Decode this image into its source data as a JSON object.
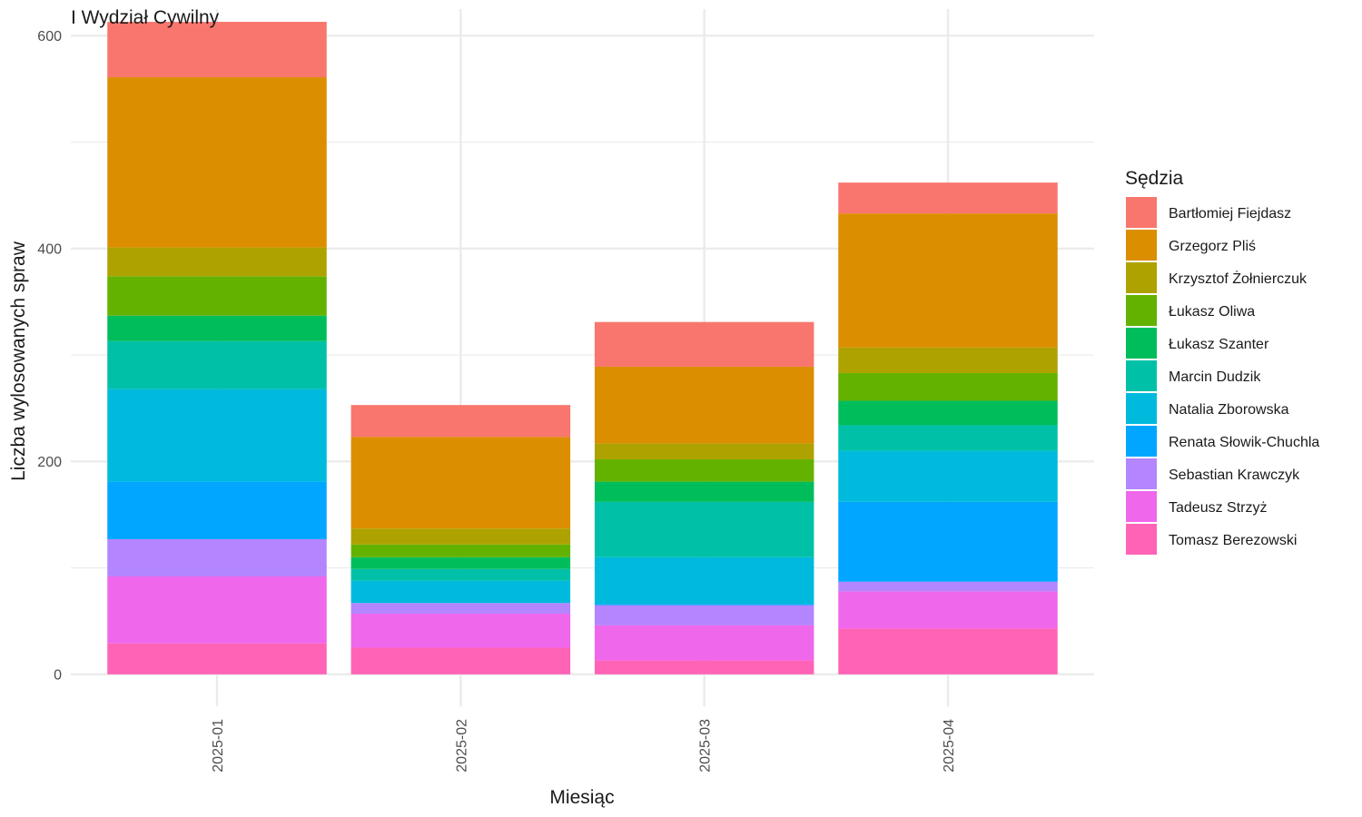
{
  "chart_data": {
    "type": "bar",
    "stacked": true,
    "title": "I Wydział Cywilny",
    "xlabel": "Miesiąc",
    "ylabel": "Liczba wylosowanych spraw",
    "ylim": [
      -30,
      625
    ],
    "yticks": [
      0,
      200,
      400,
      600
    ],
    "grid": true,
    "legend_position": "right",
    "legend_title": "Sędzia",
    "categories": [
      "2025-01",
      "2025-02",
      "2025-03",
      "2025-04"
    ],
    "series": [
      {
        "name": "Bartłomiej Fiejdasz",
        "color": "#F8766D",
        "values": [
          52,
          30,
          42,
          29
        ]
      },
      {
        "name": "Grzegorz Pliś",
        "color": "#DB8E00",
        "values": [
          160,
          86,
          72,
          126
        ]
      },
      {
        "name": "Krzysztof Żołnierczuk",
        "color": "#AEA200",
        "values": [
          27,
          15,
          15,
          24
        ]
      },
      {
        "name": "Łukasz Oliwa",
        "color": "#64B200",
        "values": [
          37,
          12,
          21,
          26
        ]
      },
      {
        "name": "Łukasz Szanter",
        "color": "#00BD5C",
        "values": [
          24,
          11,
          19,
          23
        ]
      },
      {
        "name": "Marcin Dudzik",
        "color": "#00C1A7",
        "values": [
          45,
          11,
          52,
          24
        ]
      },
      {
        "name": "Natalia Zborowska",
        "color": "#00BADE",
        "values": [
          87,
          21,
          44,
          48
        ]
      },
      {
        "name": "Renata Słowik-Chuchla",
        "color": "#00A6FF",
        "values": [
          54,
          0,
          1,
          75
        ]
      },
      {
        "name": "Sebastian Krawczyk",
        "color": "#B385FF",
        "values": [
          35,
          10,
          19,
          9
        ]
      },
      {
        "name": "Tadeusz Strzyż",
        "color": "#EF67EB",
        "values": [
          63,
          32,
          33,
          35
        ]
      },
      {
        "name": "Tomasz Berezowski",
        "color": "#FF63B6",
        "values": [
          29,
          25,
          13,
          43
        ]
      }
    ]
  }
}
